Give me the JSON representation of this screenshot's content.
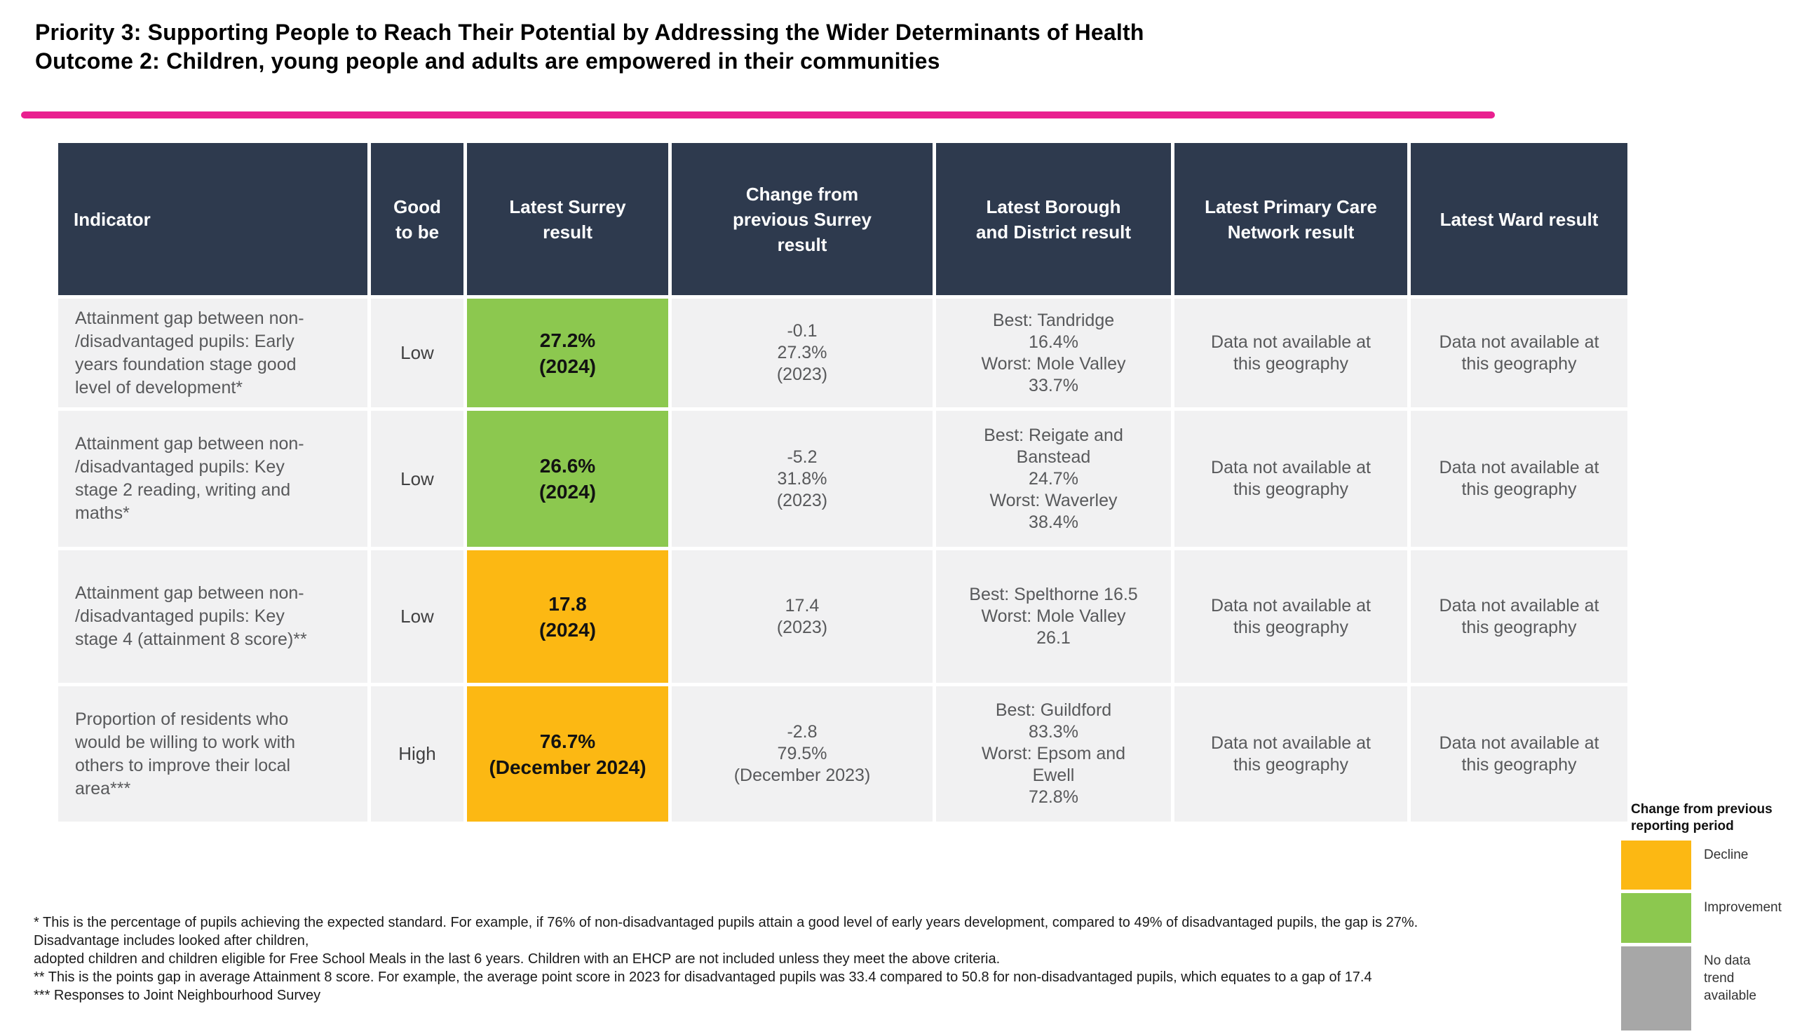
{
  "header": {
    "title_line1": "Priority 3: Supporting People to Reach Their Potential by Addressing the Wider Determinants of Health",
    "title_line2": "Outcome 2: Children, young people and adults are empowered in their communities",
    "accent_color": "#e91f8f"
  },
  "colors": {
    "header_bg": "#2e3a4e",
    "cell_bg": "#f1f1f2",
    "improvement": "#8cc84f",
    "decline": "#fcb813",
    "no_data": "#a7a7a7"
  },
  "table": {
    "headers": {
      "indicator": "Indicator",
      "good_to_be": "Good\nto be",
      "latest_surrey": "Latest Surrey\nresult",
      "change": "Change from\nprevious Surrey\nresult",
      "borough": "Latest Borough\nand District result",
      "pcn": "Latest Primary Care\nNetwork result",
      "ward": "Latest Ward result"
    },
    "rows": [
      {
        "indicator": "Attainment gap between non-\n/disadvantaged pupils: Early\nyears foundation stage good\nlevel of development*",
        "good_to_be": "Low",
        "surrey_result": "27.2%\n(2024)",
        "surrey_status": "improvement",
        "surrey_color": "#8cc84f",
        "change": "-0.1\n27.3%\n(2023)",
        "borough": "Best: Tandridge\n16.4%\nWorst: Mole Valley\n33.7%",
        "pcn": "Data not available at\nthis geography",
        "ward": "Data not available at\nthis geography"
      },
      {
        "indicator": "Attainment gap between non-\n/disadvantaged pupils: Key\nstage 2 reading, writing and\nmaths*",
        "good_to_be": "Low",
        "surrey_result": "26.6%\n(2024)",
        "surrey_status": "improvement",
        "surrey_color": "#8cc84f",
        "change": "-5.2\n31.8%\n(2023)",
        "borough": "Best: Reigate and\nBanstead\n24.7%\nWorst: Waverley\n38.4%",
        "pcn": "Data not available at\nthis geography",
        "ward": "Data not available at\nthis geography"
      },
      {
        "indicator": "Attainment gap between non-\n/disadvantaged pupils: Key\nstage 4 (attainment 8 score)**",
        "good_to_be": "Low",
        "surrey_result": "17.8\n(2024)",
        "surrey_status": "decline",
        "surrey_color": "#fcb813",
        "change": "17.4\n(2023)",
        "borough": "Best: Spelthorne 16.5\nWorst: Mole Valley\n26.1",
        "pcn": "Data not available at\nthis geography",
        "ward": "Data not available at\nthis geography"
      },
      {
        "indicator": "Proportion of residents who\nwould be willing to work with\nothers to improve their local\narea***",
        "good_to_be": "High",
        "surrey_result": "76.7%\n(December 2024)",
        "surrey_status": "decline",
        "surrey_color": "#fcb813",
        "change": "-2.8\n79.5%\n(December 2023)",
        "borough": "Best: Guildford\n83.3%\nWorst: Epsom and\nEwell\n72.8%",
        "pcn": "Data not available at\nthis geography",
        "ward": "Data not available at\nthis geography"
      }
    ]
  },
  "footnotes": [
    "* This is the percentage of pupils achieving the expected standard. For example, if 76% of non-disadvantaged pupils attain a good level of early years development, compared to 49% of disadvantaged pupils, the gap is 27%.",
    "Disadvantage includes looked after children,",
    "adopted children and children eligible for Free School Meals in the last 6 years. Children with an EHCP are not included unless they meet the above criteria.",
    "** This is the points gap in average Attainment 8 score. For example, the average point score in 2023 for disadvantaged pupils was 33.4 compared to 50.8 for non-disadvantaged pupils, which equates to a gap of 17.4",
    "*** Responses to Joint Neighbourhood Survey"
  ],
  "legend": {
    "title": "Change from previous\nreporting period",
    "items": [
      {
        "label": "Decline",
        "color": "#fcb813"
      },
      {
        "label": "Improvement",
        "color": "#8cc84f"
      },
      {
        "label": "No data\ntrend\navailable",
        "color": "#a7a7a7"
      }
    ]
  }
}
